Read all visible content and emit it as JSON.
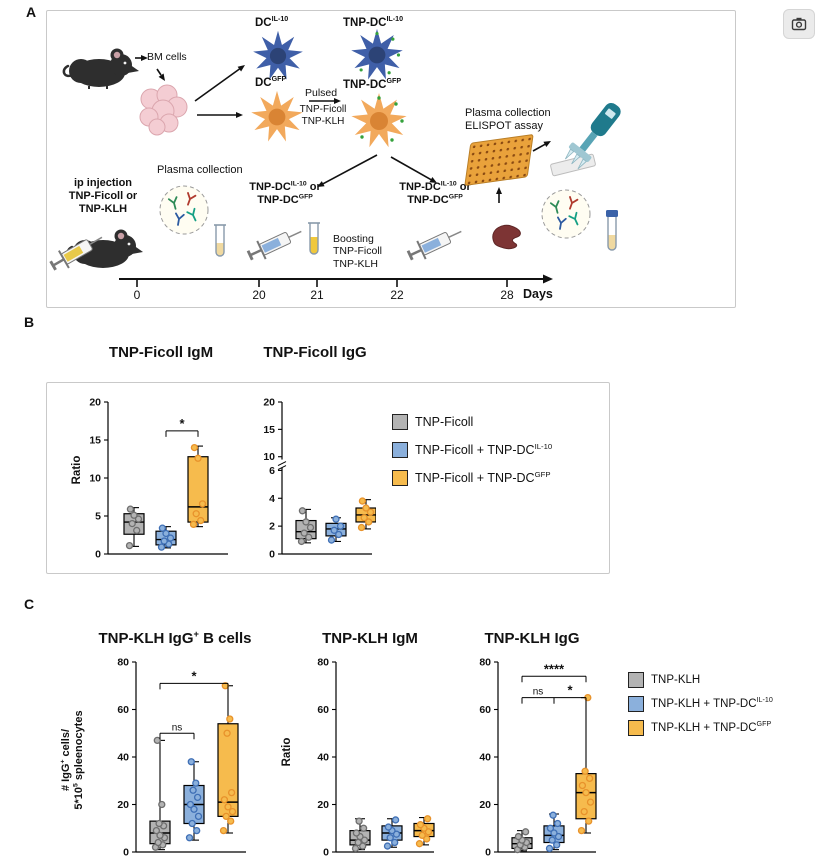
{
  "panels": {
    "a": "A",
    "b": "B",
    "c": "C"
  },
  "colors": {
    "gray": {
      "fill": "#b3b3b3",
      "point": "#6e6e6e"
    },
    "blue": {
      "fill": "#8bb0dc",
      "point": "#3f6fb5"
    },
    "orange": {
      "fill": "#f6bb4d",
      "point": "#e8922b"
    },
    "accent_green": "#35a13c",
    "dc_blue": "#3f5fa8",
    "dc_orange": "#f2a95c"
  },
  "panel_a": {
    "bm_cells": "BM cells",
    "dc_il10": [
      {
        "t": "DC"
      },
      {
        "t": "IL-10",
        "sup": true
      }
    ],
    "dc_gfp": [
      {
        "t": "DC"
      },
      {
        "t": "GFP",
        "sup": true
      }
    ],
    "tnp_dc_il10": [
      {
        "t": "TNP-DC"
      },
      {
        "t": "IL-10",
        "sup": true
      }
    ],
    "tnp_dc_gfp": [
      {
        "t": "TNP-DC"
      },
      {
        "t": "GFP",
        "sup": true
      }
    ],
    "pulsed": "Pulsed",
    "pulsed_line1": "TNP-Ficoll",
    "pulsed_line2": "TNP-KLH",
    "ip_line1": "ip injection",
    "ip_line2": "TNP-Ficoll or",
    "ip_line3": "TNP-KLH",
    "plasma_collection": "Plasma collection",
    "boost_line1": [
      {
        "t": "TNP-DC"
      },
      {
        "t": "IL-10",
        "sup": true
      },
      {
        "t": " or"
      }
    ],
    "boost_line2": [
      {
        "t": "TNP-DC"
      },
      {
        "t": "GFP",
        "sup": true
      }
    ],
    "boosting_line1": "Boosting",
    "boosting_line2": "TNP-Ficoll",
    "boosting_line3": "TNP-KLH",
    "plasma_elispot_line1": "Plasma collection",
    "plasma_elispot_line2": "ELISPOT assay",
    "timeline": {
      "ticks": [
        "0",
        "20",
        "21",
        "22",
        "28"
      ],
      "unit": "Days"
    }
  },
  "panel_b": {
    "ylabel_igm": "Ratio",
    "legend": [
      {
        "color": "gray",
        "label": [
          {
            "t": "TNP-Ficoll"
          }
        ]
      },
      {
        "color": "blue",
        "label": [
          {
            "t": "TNP-Ficoll + TNP-DC"
          },
          {
            "t": "IL-10",
            "sup": true
          }
        ]
      },
      {
        "color": "orange",
        "label": [
          {
            "t": "TNP-Ficoll + TNP-DC"
          },
          {
            "t": "GFP",
            "sup": true
          }
        ]
      }
    ]
  },
  "panel_c": {
    "title_bcells": [
      {
        "t": "TNP-KLH IgG"
      },
      {
        "t": "+",
        "sup": true
      },
      {
        "t": " B cells"
      }
    ],
    "ylabel_bcells_line1": [
      {
        "t": "# IgG"
      },
      {
        "t": "+",
        "sup": true
      },
      {
        "t": " cells/"
      }
    ],
    "ylabel_bcells_line2": [
      {
        "t": "5*10"
      },
      {
        "t": "5",
        "sup": true
      },
      {
        "t": " spleenocytes"
      }
    ],
    "ylabel_igm": "Ratio",
    "legend": [
      {
        "color": "gray",
        "label": [
          {
            "t": "TNP-KLH"
          }
        ]
      },
      {
        "color": "blue",
        "label": [
          {
            "t": "TNP-KLH + TNP-DC"
          },
          {
            "t": "IL-10",
            "sup": true
          }
        ]
      },
      {
        "color": "orange",
        "label": [
          {
            "t": "TNP-KLH + TNP-DC"
          },
          {
            "t": "GFP",
            "sup": true
          }
        ]
      }
    ]
  },
  "chart_data": [
    {
      "type": "box",
      "title": "TNP-Ficoll IgM",
      "ylabel": "Ratio",
      "ylim": [
        0,
        20
      ],
      "yticks": [
        0,
        5,
        10,
        15,
        20
      ],
      "ymap": [
        [
          0,
          0
        ],
        [
          20,
          1
        ]
      ],
      "group_names": [
        "TNP-Ficoll",
        "TNP-Ficoll + TNP-DC IL-10",
        "TNP-Ficoll + TNP-DC GFP"
      ],
      "groups": [
        {
          "color": "gray",
          "box": {
            "lo": 1,
            "q1": 2.6,
            "med": 4.2,
            "q3": 5.3,
            "hi": 6.1
          },
          "points": [
            1.1,
            3.1,
            4,
            4.6,
            5.1,
            5.9
          ]
        },
        {
          "color": "blue",
          "box": {
            "lo": 0.8,
            "q1": 1.2,
            "med": 1.9,
            "q3": 3,
            "hi": 3.6
          },
          "points": [
            0.9,
            1.3,
            1.7,
            2.1,
            2.7,
            3.4
          ]
        },
        {
          "color": "orange",
          "box": {
            "lo": 3.6,
            "q1": 4.2,
            "med": 6.2,
            "q3": 12.8,
            "hi": 14.2
          },
          "points": [
            3.9,
            4.4,
            5.3,
            6.6,
            12.6,
            14
          ]
        }
      ],
      "comparisons": [
        {
          "a": 1,
          "b": 2,
          "label": "*",
          "v": 16.2
        }
      ]
    },
    {
      "type": "box",
      "title": "TNP-Ficoll  IgG",
      "ylabel": "",
      "ylim": [
        0,
        20
      ],
      "axis_break": [
        6,
        10
      ],
      "yticks": [
        0,
        2,
        4,
        6,
        10,
        15,
        20
      ],
      "ymap": [
        [
          0,
          0
        ],
        [
          6,
          0.55
        ],
        [
          10,
          0.64
        ],
        [
          20,
          1
        ]
      ],
      "break_frac": 0.595,
      "group_names": [
        "TNP-Ficoll",
        "TNP-Ficoll + TNP-DC IL-10",
        "TNP-Ficoll + TNP-DC GFP"
      ],
      "groups": [
        {
          "color": "gray",
          "box": {
            "lo": 0.8,
            "q1": 1.1,
            "med": 1.6,
            "q3": 2.4,
            "hi": 3.2
          },
          "points": [
            0.9,
            1.2,
            1.5,
            1.9,
            2.3,
            3.1
          ]
        },
        {
          "color": "blue",
          "box": {
            "lo": 0.9,
            "q1": 1.3,
            "med": 1.8,
            "q3": 2.2,
            "hi": 2.6
          },
          "points": [
            1,
            1.4,
            1.7,
            2,
            2.5
          ]
        },
        {
          "color": "orange",
          "box": {
            "lo": 1.8,
            "q1": 2.3,
            "med": 2.8,
            "q3": 3.3,
            "hi": 3.9
          },
          "points": [
            1.9,
            2.3,
            2.6,
            3,
            3.3,
            3.8
          ]
        }
      ],
      "comparisons": []
    },
    {
      "type": "box",
      "title": "TNP-KLH IgG+ B cells",
      "ylabel": "# IgG+ cells/ 5*10^5 spleenocytes",
      "ylim": [
        0,
        80
      ],
      "yticks": [
        0,
        20,
        40,
        60,
        80
      ],
      "ymap": [
        [
          0,
          0
        ],
        [
          80,
          1
        ]
      ],
      "group_names": [
        "TNP-KLH",
        "TNP-KLH + TNP-DC IL-10",
        "TNP-KLH + TNP-DC GFP"
      ],
      "groups": [
        {
          "color": "gray",
          "box": {
            "lo": 1,
            "q1": 3.5,
            "med": 8,
            "q3": 13,
            "hi": 47
          },
          "points": [
            2,
            3,
            4,
            6,
            7,
            9,
            11,
            12,
            20,
            47
          ]
        },
        {
          "color": "blue",
          "box": {
            "lo": 5,
            "q1": 12,
            "med": 20,
            "q3": 28,
            "hi": 38
          },
          "points": [
            6,
            9,
            12,
            15,
            18,
            20,
            23,
            26,
            29,
            38
          ]
        },
        {
          "color": "orange",
          "box": {
            "lo": 8,
            "q1": 15,
            "med": 21,
            "q3": 54,
            "hi": 70
          },
          "points": [
            9,
            13,
            15,
            17,
            19,
            22,
            25,
            50,
            56,
            70
          ]
        }
      ],
      "comparisons": [
        {
          "a": 0,
          "b": 1,
          "label": "ns",
          "v": 50
        },
        {
          "a": 0,
          "b": 2,
          "label": "*",
          "v": 71
        }
      ]
    },
    {
      "type": "box",
      "title": "TNP-KLH IgM",
      "ylabel": "Ratio",
      "ylim": [
        0,
        80
      ],
      "yticks": [
        0,
        20,
        40,
        60,
        80
      ],
      "ymap": [
        [
          0,
          0
        ],
        [
          80,
          1
        ]
      ],
      "group_names": [
        "TNP-KLH",
        "TNP-KLH + TNP-DC IL-10",
        "TNP-KLH + TNP-DC GFP"
      ],
      "groups": [
        {
          "color": "gray",
          "box": {
            "lo": 1,
            "q1": 3,
            "med": 5,
            "q3": 9,
            "hi": 14
          },
          "points": [
            1.5,
            2.5,
            4,
            5,
            6.5,
            8,
            10,
            13
          ]
        },
        {
          "color": "blue",
          "box": {
            "lo": 2,
            "q1": 5,
            "med": 8,
            "q3": 11,
            "hi": 14
          },
          "points": [
            2.5,
            4,
            6,
            7.5,
            9,
            10.5,
            13.5
          ]
        },
        {
          "color": "orange",
          "box": {
            "lo": 3,
            "q1": 6.5,
            "med": 9,
            "q3": 12,
            "hi": 14.5
          },
          "points": [
            3.5,
            5.5,
            7,
            8.5,
            10,
            11.5,
            14
          ]
        }
      ],
      "comparisons": []
    },
    {
      "type": "box",
      "title": "TNP-KLH IgG",
      "ylabel": "",
      "ylim": [
        0,
        80
      ],
      "yticks": [
        0,
        20,
        40,
        60,
        80
      ],
      "ymap": [
        [
          0,
          0
        ],
        [
          80,
          1
        ]
      ],
      "group_names": [
        "TNP-KLH",
        "TNP-KLH + TNP-DC IL-10",
        "TNP-KLH + TNP-DC GFP"
      ],
      "groups": [
        {
          "color": "gray",
          "box": {
            "lo": 0.5,
            "q1": 1.5,
            "med": 3.5,
            "q3": 6,
            "hi": 9
          },
          "points": [
            1,
            2,
            3,
            4,
            5,
            6.5,
            8.5
          ]
        },
        {
          "color": "blue",
          "box": {
            "lo": 1,
            "q1": 4,
            "med": 7,
            "q3": 11,
            "hi": 16
          },
          "points": [
            1.5,
            3,
            5,
            6.5,
            8,
            10,
            12,
            15.5
          ]
        },
        {
          "color": "orange",
          "box": {
            "lo": 8,
            "q1": 14,
            "med": 25,
            "q3": 33,
            "hi": 65
          },
          "points": [
            9,
            13,
            17,
            21,
            25,
            28,
            31,
            34,
            65
          ]
        }
      ],
      "comparisons": [
        {
          "a": 0,
          "b": 1,
          "label": "ns",
          "v": 65
        },
        {
          "a": 1,
          "b": 2,
          "label": "*",
          "v": 65
        },
        {
          "a": 0,
          "b": 2,
          "label": "****",
          "v": 74
        }
      ]
    }
  ]
}
